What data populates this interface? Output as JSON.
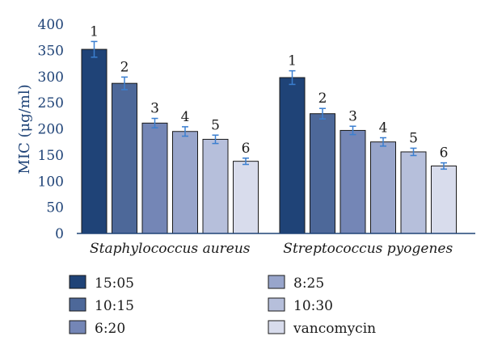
{
  "chart_data": {
    "type": "bar",
    "title": "",
    "ylabel": "MIC (μg/ml)",
    "xlabel": "",
    "ylim": [
      0,
      400
    ],
    "yticks": [
      0,
      50,
      100,
      150,
      200,
      250,
      300,
      350,
      400
    ],
    "grid": false,
    "categories": [
      "Staphylococcus aureus",
      "Streptococcus pyogenes"
    ],
    "legend_position": "bottom",
    "series": [
      {
        "name": "15:05",
        "bar_label": "1",
        "values": [
          352,
          298
        ],
        "errors": [
          15,
          13
        ],
        "color": "#1f4377"
      },
      {
        "name": "10:15",
        "bar_label": "2",
        "values": [
          287,
          229
        ],
        "errors": [
          12,
          10
        ],
        "color": "#4d6899"
      },
      {
        "name": "6:20",
        "bar_label": "3",
        "values": [
          211,
          197
        ],
        "errors": [
          9,
          8
        ],
        "color": "#7486b6"
      },
      {
        "name": "8:25",
        "bar_label": "4",
        "values": [
          195,
          175
        ],
        "errors": [
          9,
          8
        ],
        "color": "#98a5cb"
      },
      {
        "name": "10:30",
        "bar_label": "5",
        "values": [
          180,
          156
        ],
        "errors": [
          8,
          7
        ],
        "color": "#b6bfdb"
      },
      {
        "name": "vancomycin",
        "bar_label": "6",
        "values": [
          138,
          129
        ],
        "errors": [
          6,
          6
        ],
        "color": "#d8dcec"
      }
    ],
    "axis_color": "#1f4377",
    "error_bar_color": "#3b7fd0"
  }
}
